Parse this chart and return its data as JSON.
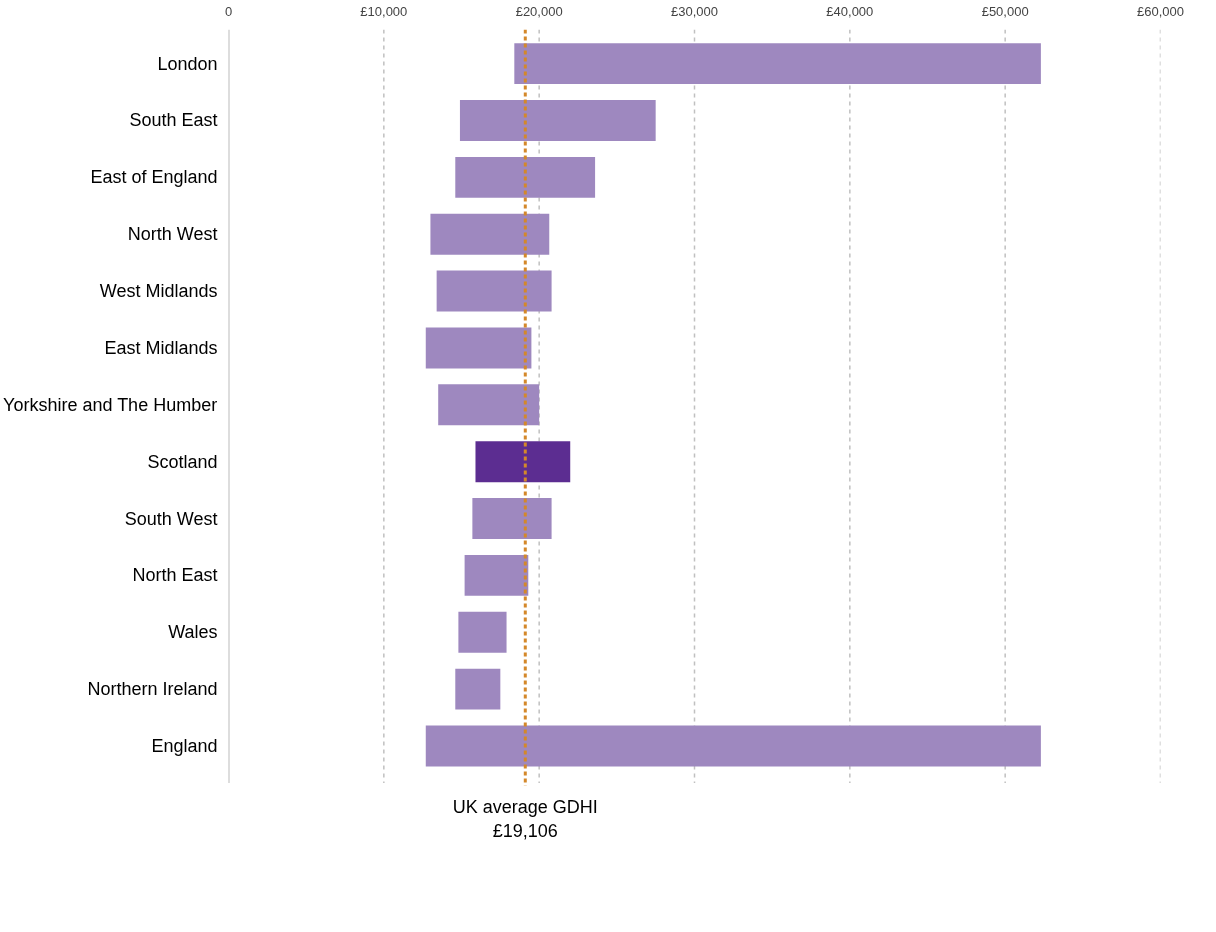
{
  "chart_data": {
    "type": "bar",
    "orientation": "horizontal",
    "categories": [
      "London",
      "South East",
      "East of England",
      "North West",
      "West Midlands",
      "East Midlands",
      "Yorkshire and The Humber",
      "Scotland",
      "South West",
      "North East",
      "Wales",
      "Northern Ireland",
      "England"
    ],
    "base": [
      18400,
      14900,
      14600,
      13000,
      13400,
      12700,
      13500,
      15900,
      15700,
      15200,
      14800,
      14600,
      12700
    ],
    "values": [
      33900,
      12600,
      9000,
      7650,
      7400,
      6800,
      6500,
      6100,
      5100,
      4100,
      3100,
      2900,
      39600
    ],
    "colors": [
      "#9e88bf",
      "#9e88bf",
      "#9e88bf",
      "#9e88bf",
      "#9e88bf",
      "#9e88bf",
      "#9e88bf",
      "#5c2d91",
      "#9e88bf",
      "#9e88bf",
      "#9e88bf",
      "#9e88bf",
      "#9e88bf"
    ],
    "xlim": [
      0,
      60000
    ],
    "xticks": [
      0,
      {
        "value": 10000,
        "label": "£10,000"
      },
      {
        "value": 20000,
        "label": "£20,000"
      },
      {
        "value": 30000,
        "label": "£30,000"
      },
      {
        "value": 40000,
        "label": "£40,000"
      },
      {
        "value": 50000,
        "label": "£50,000"
      },
      {
        "value": 60000,
        "label": "£60,000"
      }
    ],
    "grid": "x",
    "ref_lines": [
      {
        "axis": "x",
        "value": 19106,
        "label": "UK average GDHI\n£19,106",
        "color": "#d4882a",
        "line_style": "dotted"
      }
    ]
  }
}
